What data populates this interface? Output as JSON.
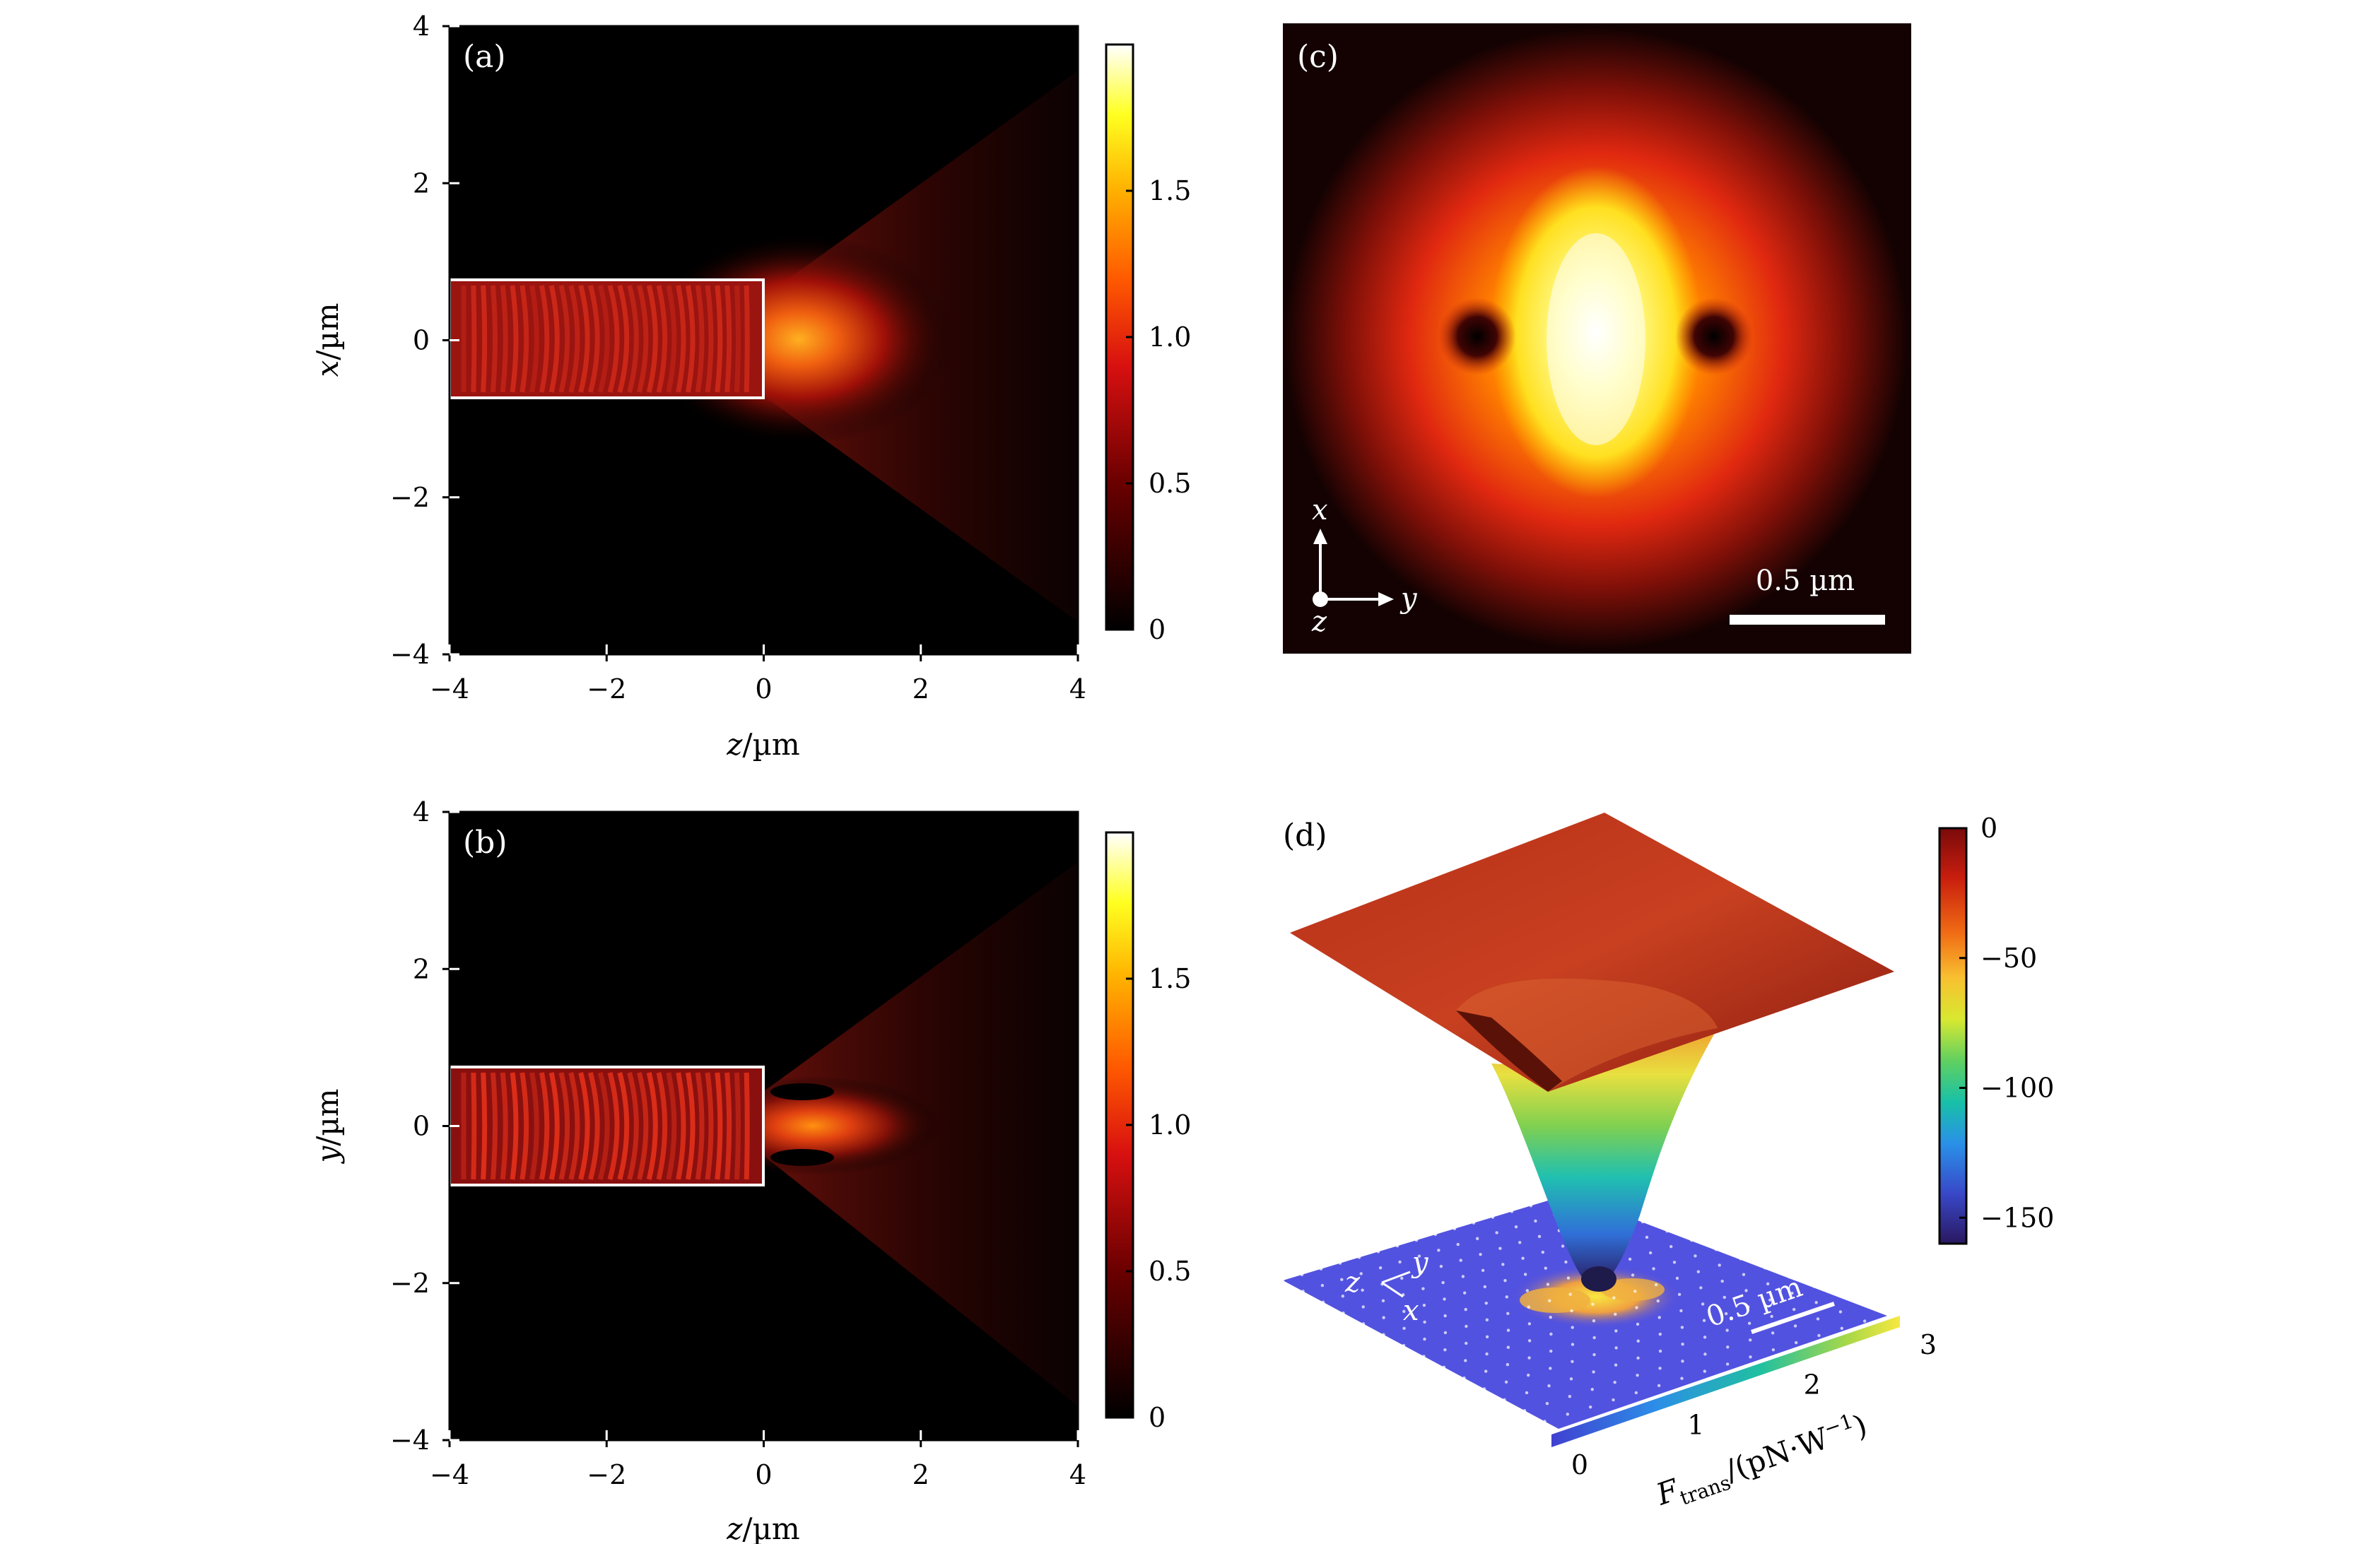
{
  "chart_data": [
    {
      "panel": "(a)",
      "type": "heatmap",
      "description_label": "(a)",
      "xlabel_var": "z",
      "xlabel_unit": "/µm",
      "ylabel_var": "x",
      "ylabel_unit": "/µm",
      "xlim": [
        -4,
        4
      ],
      "ylim": [
        -4,
        4
      ],
      "xticks": [
        -4,
        -2,
        0,
        2,
        4
      ],
      "yticks": [
        -4,
        -2,
        0,
        2,
        4
      ],
      "xtick_labels": [
        "−4",
        "−2",
        "0",
        "2",
        "4"
      ],
      "ytick_labels": [
        "−4",
        "−2",
        "0",
        "2",
        "4"
      ],
      "waveguide_box": {
        "z_range": [
          -4,
          0
        ],
        "x_range": [
          -0.75,
          0.75
        ]
      },
      "colorbar": {
        "range": [
          0,
          2
        ],
        "ticks": [
          0,
          0.5,
          1.0,
          1.5
        ],
        "tick_labels": [
          "0",
          "0.5",
          "1.0",
          "1.5"
        ]
      }
    },
    {
      "panel": "(b)",
      "type": "heatmap",
      "description_label": "(b)",
      "xlabel_var": "z",
      "xlabel_unit": "/µm",
      "ylabel_var": "y",
      "ylabel_unit": "/µm",
      "xlim": [
        -4,
        4
      ],
      "ylim": [
        -4,
        4
      ],
      "xticks": [
        -4,
        -2,
        0,
        2,
        4
      ],
      "yticks": [
        -4,
        -2,
        0,
        2,
        4
      ],
      "xtick_labels": [
        "−4",
        "−2",
        "0",
        "2",
        "4"
      ],
      "ytick_labels": [
        "−4",
        "−2",
        "0",
        "2",
        "4"
      ],
      "waveguide_box": {
        "z_range": [
          -4,
          0
        ],
        "y_range": [
          -0.75,
          0.75
        ]
      },
      "colorbar": {
        "range": [
          0,
          2
        ],
        "ticks": [
          0,
          0.5,
          1.0,
          1.5
        ],
        "tick_labels": [
          "0",
          "0.5",
          "1.0",
          "1.5"
        ]
      }
    },
    {
      "panel": "(c)",
      "type": "heatmap",
      "description_label": "(c)",
      "scale_bar_label": "0.5 µm",
      "axes_labels": {
        "x": "x",
        "y": "y",
        "z": "z"
      }
    },
    {
      "panel": "(d)",
      "type": "surface",
      "description_label": "(d)",
      "scale_bar_label": "0.5 µm",
      "axes_labels": {
        "z": "z",
        "y": "y",
        "x": "x"
      },
      "colorbar": {
        "range": [
          -160,
          0
        ],
        "ticks": [
          0,
          -50,
          -100,
          -150
        ],
        "tick_labels": [
          "0",
          "−50",
          "−100",
          "−150"
        ]
      },
      "floor_colorbar": {
        "range": [
          0,
          3
        ],
        "ticks": [
          0,
          1,
          2,
          3
        ],
        "tick_labels": [
          "0",
          "1",
          "2",
          "3"
        ],
        "label_main": "F",
        "label_sub": "trans",
        "label_unit_pre": "/(pN·W",
        "label_exp": "−1",
        "label_unit_post": ")"
      }
    }
  ]
}
